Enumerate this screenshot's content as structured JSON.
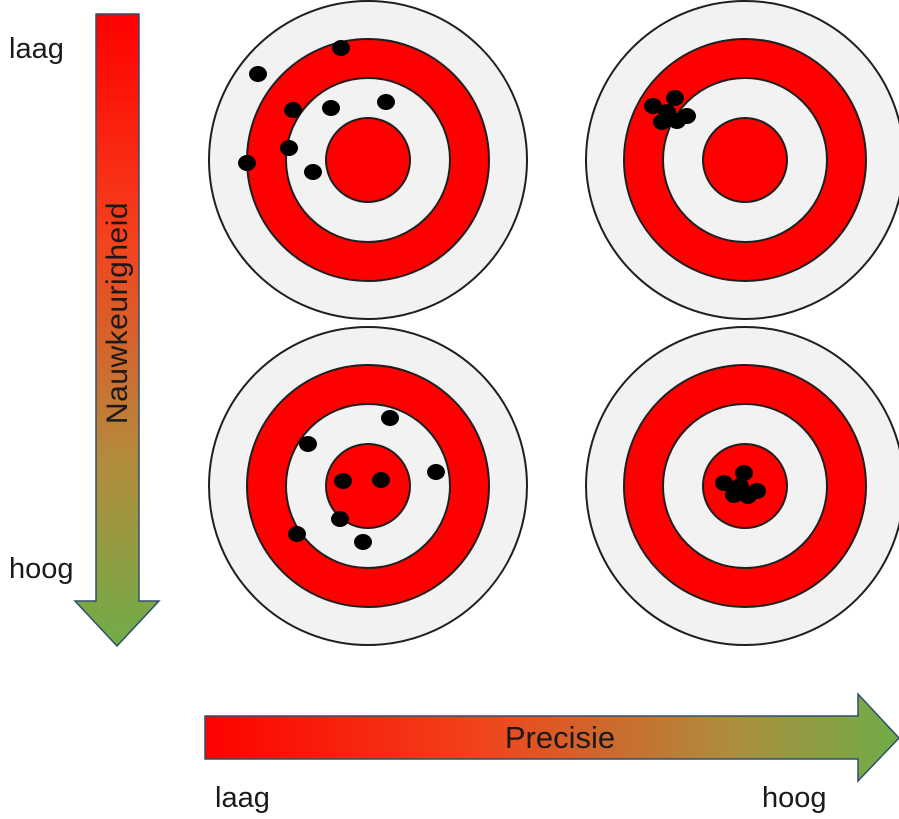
{
  "vertical_axis": {
    "title": "Nauwkeurigheid",
    "top_label": "laag",
    "bottom_label": "hoog"
  },
  "horizontal_axis": {
    "title": "Precisie",
    "left_label": "laag",
    "right_label": "hoog"
  },
  "gradient_colors": {
    "low": "#ff0000",
    "high": "#70ad47"
  },
  "ring_colors": {
    "red": "#ff0000",
    "light": "#f2f2f2",
    "outline": "#1f1f1f"
  },
  "targets": [
    {
      "id": "low-accuracy-low-precision"
    },
    {
      "id": "low-accuracy-high-precision"
    },
    {
      "id": "high-accuracy-low-precision"
    },
    {
      "id": "high-accuracy-high-precision"
    }
  ]
}
